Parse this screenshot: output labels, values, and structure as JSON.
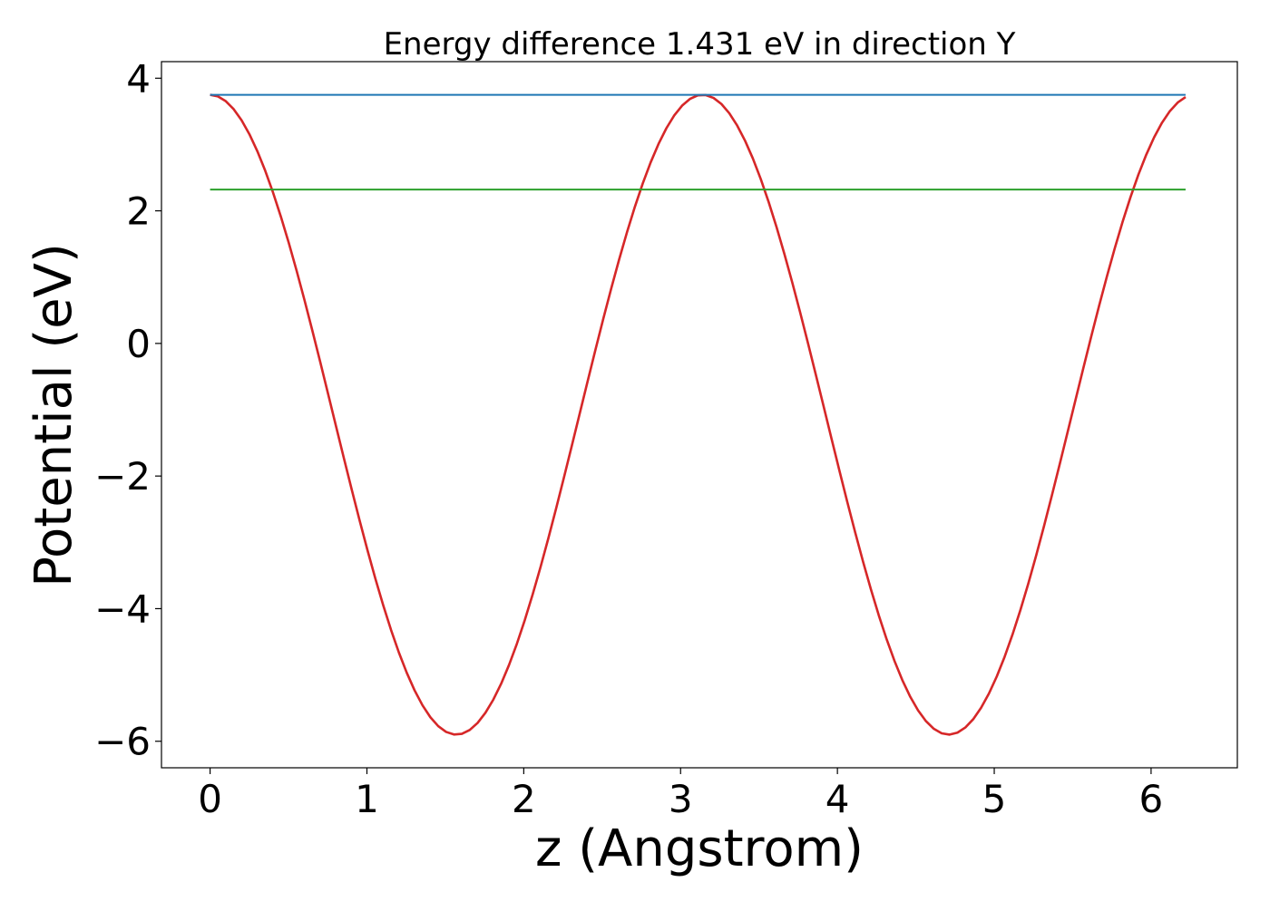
{
  "chart_data": {
    "type": "line",
    "title": "Energy difference 1.431 eV in direction Y",
    "xlabel": "z (Angstrom)",
    "ylabel": "Potential (eV)",
    "xlim": [
      -0.31,
      6.55
    ],
    "ylim": [
      -6.4,
      4.25
    ],
    "xticks": [
      0,
      1,
      2,
      3,
      4,
      5,
      6
    ],
    "yticks": [
      4,
      2,
      0,
      -2,
      -4,
      -6
    ],
    "grid": false,
    "series": [
      {
        "kind": "curve",
        "color": "#d62728",
        "x_range": [
          0,
          6.22
        ],
        "form": "V(z) = -1.075 + 4.825*cos(4*pi*z/6.28)",
        "sample_count": 125
      },
      {
        "kind": "hline",
        "color": "#1f77b4",
        "y": 3.75,
        "x_range": [
          0,
          6.22
        ]
      },
      {
        "kind": "hline",
        "color": "#2ca02c",
        "y": 2.32,
        "x_range": [
          0,
          6.22
        ]
      }
    ]
  }
}
